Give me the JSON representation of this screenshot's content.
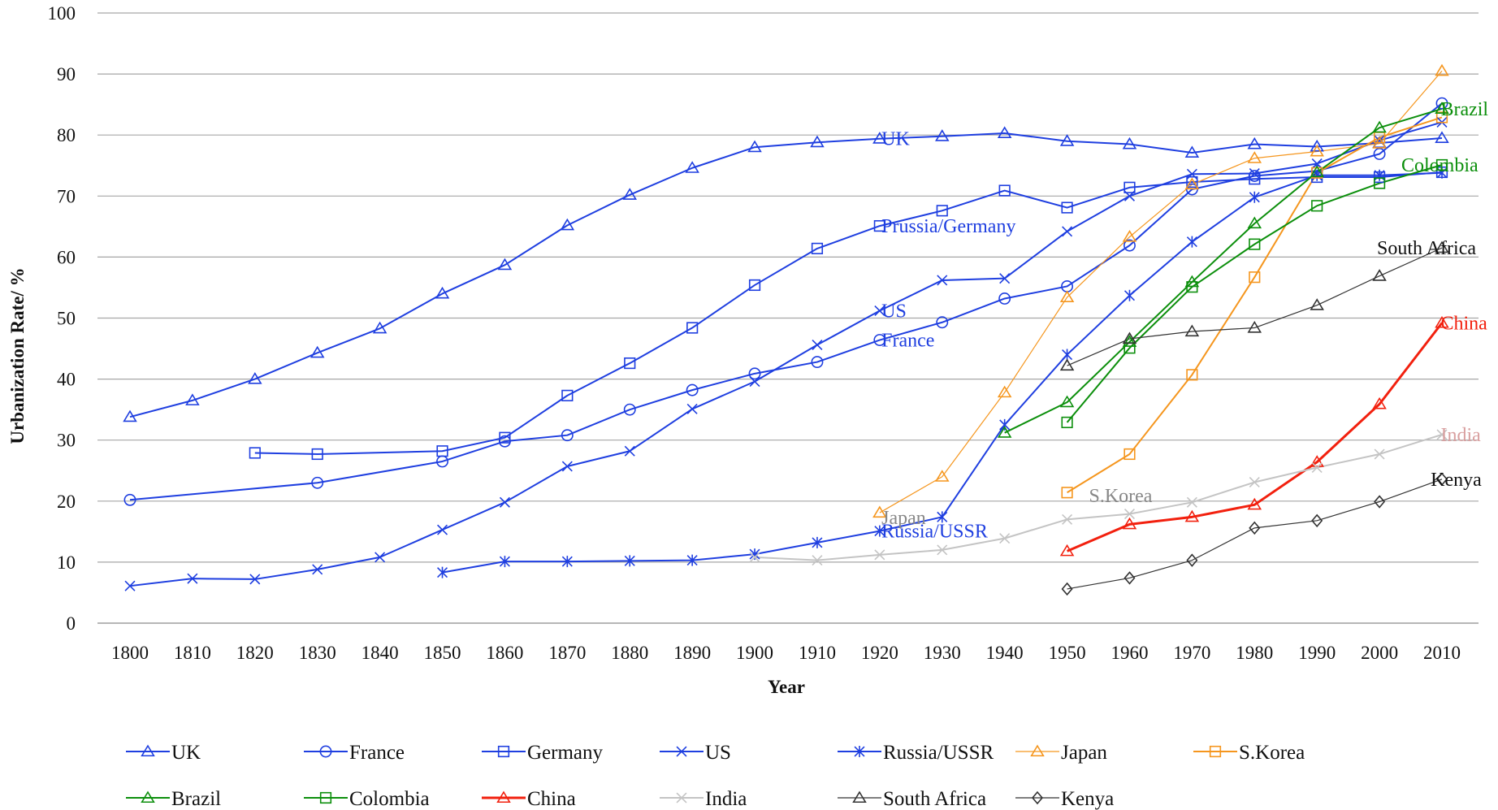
{
  "chart_data": {
    "type": "line",
    "title": "",
    "xlabel": "Year",
    "ylabel": "Urbanization Rate/ %",
    "xlim": [
      1800,
      2010
    ],
    "ylim": [
      0,
      100
    ],
    "y_ticks": [
      0,
      10,
      20,
      30,
      40,
      50,
      60,
      70,
      80,
      90,
      100
    ],
    "x_ticks": [
      1800,
      1810,
      1820,
      1830,
      1840,
      1850,
      1860,
      1870,
      1880,
      1890,
      1900,
      1910,
      1920,
      1930,
      1940,
      1950,
      1960,
      1970,
      1980,
      1990,
      2000,
      2010
    ],
    "grid": "horizontal",
    "legend_position": "bottom",
    "series": [
      {
        "name": "UK",
        "color": "#1f3fe0",
        "marker": "triangle",
        "width": 2,
        "x": [
          1800,
          1810,
          1820,
          1830,
          1840,
          1850,
          1860,
          1870,
          1880,
          1890,
          1900,
          1910,
          1920,
          1930,
          1940,
          1950,
          1960,
          1970,
          1980,
          1990,
          2000,
          2010
        ],
        "y": [
          33.8,
          36.5,
          40,
          44.3,
          48.3,
          54,
          58.7,
          65.2,
          70.2,
          74.6,
          78,
          78.8,
          79.4,
          79.8,
          80.3,
          79,
          78.5,
          77.1,
          78.5,
          78.1,
          78.7,
          79.5
        ]
      },
      {
        "name": "France",
        "color": "#1f3fe0",
        "marker": "circle",
        "width": 2,
        "x": [
          1800,
          1830,
          1850,
          1860,
          1870,
          1880,
          1890,
          1900,
          1910,
          1920,
          1930,
          1940,
          1950,
          1960,
          1970,
          1980,
          1990,
          2000,
          2010
        ],
        "y": [
          20.2,
          23,
          26.5,
          29.8,
          30.8,
          35,
          38.2,
          40.9,
          42.8,
          46.4,
          49.3,
          53.2,
          55.2,
          61.9,
          71.1,
          73.3,
          74.1,
          76.9,
          85.2
        ]
      },
      {
        "name": "Germany",
        "color": "#1f3fe0",
        "marker": "square",
        "width": 2,
        "x": [
          1820,
          1830,
          1850,
          1860,
          1870,
          1880,
          1890,
          1900,
          1910,
          1920,
          1930,
          1940,
          1950,
          1960,
          1970,
          1980,
          1990,
          2000,
          2010
        ],
        "y": [
          27.9,
          27.7,
          28.2,
          30.4,
          37.3,
          42.6,
          48.4,
          55.4,
          61.4,
          65.1,
          67.6,
          70.9,
          68.1,
          71.4,
          72.3,
          72.8,
          73.1,
          73.1,
          73.9
        ]
      },
      {
        "name": "US",
        "color": "#1f3fe0",
        "marker": "x",
        "width": 2,
        "x": [
          1800,
          1810,
          1820,
          1830,
          1840,
          1850,
          1860,
          1870,
          1880,
          1890,
          1900,
          1910,
          1920,
          1930,
          1940,
          1950,
          1960,
          1970,
          1980,
          1990,
          2000,
          2010
        ],
        "y": [
          6.1,
          7.3,
          7.2,
          8.8,
          10.8,
          15.3,
          19.8,
          25.7,
          28.2,
          35.1,
          39.6,
          45.6,
          51.2,
          56.2,
          56.5,
          64.2,
          70,
          73.6,
          73.7,
          75.3,
          79.1,
          82.1
        ]
      },
      {
        "name": "Russia/USSR",
        "color": "#1f3fe0",
        "marker": "star",
        "width": 2,
        "x": [
          1850,
          1860,
          1870,
          1880,
          1890,
          1900,
          1910,
          1920,
          1930,
          1940,
          1950,
          1960,
          1970,
          1980,
          1990,
          2000,
          2010
        ],
        "y": [
          8.3,
          10.1,
          10.1,
          10.2,
          10.3,
          11.3,
          13.2,
          15.1,
          17.4,
          32.5,
          44,
          53.7,
          62.5,
          69.8,
          73.4,
          73.4,
          73.8
        ]
      },
      {
        "name": "Japan",
        "color": "#f5961e",
        "marker": "triangle",
        "width": 1.2,
        "x": [
          1920,
          1930,
          1940,
          1950,
          1960,
          1970,
          1980,
          1990,
          2000,
          2010
        ],
        "y": [
          18.1,
          24,
          37.8,
          53.4,
          63.3,
          71.9,
          76.2,
          77.3,
          78.6,
          90.5
        ]
      },
      {
        "name": "S.Korea",
        "color": "#f5961e",
        "marker": "square",
        "width": 2,
        "x": [
          1950,
          1960,
          1970,
          1980,
          1990,
          2000,
          2010
        ],
        "y": [
          21.4,
          27.7,
          40.7,
          56.7,
          73.8,
          79.6,
          82.9
        ]
      },
      {
        "name": "Brazil",
        "color": "#0c8f0c",
        "marker": "triangle",
        "width": 2,
        "x": [
          1940,
          1950,
          1960,
          1970,
          1980,
          1990,
          2000,
          2010
        ],
        "y": [
          31.2,
          36.2,
          46.1,
          55.9,
          65.5,
          73.9,
          81.2,
          84.3
        ]
      },
      {
        "name": "Colombia",
        "color": "#0c8f0c",
        "marker": "square",
        "width": 2,
        "x": [
          1950,
          1960,
          1970,
          1980,
          1990,
          2000,
          2010
        ],
        "y": [
          32.9,
          45.1,
          55.1,
          62.1,
          68.4,
          72.1,
          75.1
        ]
      },
      {
        "name": "China",
        "color": "#f2200e",
        "marker": "triangle",
        "width": 3,
        "x": [
          1950,
          1960,
          1970,
          1980,
          1990,
          2000,
          2010
        ],
        "y": [
          11.8,
          16.2,
          17.4,
          19.4,
          26.4,
          35.9,
          49.2
        ]
      },
      {
        "name": "India",
        "color": "#c4c4c4",
        "marker": "x",
        "width": 2,
        "x": [
          1900,
          1910,
          1920,
          1930,
          1940,
          1950,
          1960,
          1970,
          1980,
          1990,
          2000,
          2010
        ],
        "y": [
          10.8,
          10.3,
          11.2,
          12,
          13.9,
          17,
          17.9,
          19.8,
          23.1,
          25.5,
          27.7,
          30.9
        ]
      },
      {
        "name": "South Africa",
        "color": "#333333",
        "marker": "triangle",
        "width": 1.2,
        "x": [
          1950,
          1960,
          1970,
          1980,
          1990,
          2000,
          2010
        ],
        "y": [
          42.2,
          46.6,
          47.8,
          48.4,
          52.1,
          56.9,
          61.5
        ]
      },
      {
        "name": "Kenya",
        "color": "#333333",
        "marker": "diamond",
        "width": 1.2,
        "x": [
          1950,
          1960,
          1970,
          1980,
          1990,
          2000,
          2010
        ],
        "y": [
          5.6,
          7.4,
          10.3,
          15.6,
          16.8,
          19.9,
          23.6
        ]
      }
    ],
    "annotations": [
      {
        "text": "UK",
        "x": 1920.3,
        "y": 79.4,
        "color": "#1f3fe0"
      },
      {
        "text": "Prussia/Germany",
        "x": 1920.3,
        "y": 65.1,
        "color": "#1f3fe0"
      },
      {
        "text": "US",
        "x": 1920.3,
        "y": 51.2,
        "color": "#1f3fe0"
      },
      {
        "text": "France",
        "x": 1920.3,
        "y": 46.4,
        "color": "#1f3fe0"
      },
      {
        "text": "Japan",
        "x": 1920.3,
        "y": 17.3,
        "color": "#888888"
      },
      {
        "text": "Russia/USSR",
        "x": 1920.3,
        "y": 15.1,
        "color": "#1f3fe0"
      },
      {
        "text": "S.Korea",
        "x": 1953.5,
        "y": 20.9,
        "color": "#888888"
      },
      {
        "text": "Brazil",
        "x": 2009.8,
        "y": 84.3,
        "color": "#0c8f0c"
      },
      {
        "text": "Colombia",
        "x": 2003.5,
        "y": 75.1,
        "color": "#0c8f0c"
      },
      {
        "text": "South Africa",
        "x": 1999.6,
        "y": 61.5,
        "color": "#111111"
      },
      {
        "text": "China",
        "x": 2009.8,
        "y": 49.2,
        "color": "#f2200e"
      },
      {
        "text": "India",
        "x": 2009.8,
        "y": 30.9,
        "color": "#d9a0a0"
      },
      {
        "text": "Kenya",
        "x": 2008.2,
        "y": 23.6,
        "color": "#111111"
      }
    ]
  }
}
